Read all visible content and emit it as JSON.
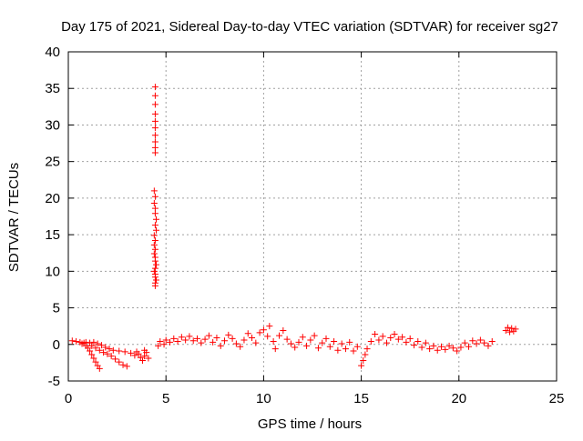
{
  "chart_data": {
    "type": "scatter",
    "title": "Day 175 of 2021, Sidereal Day-to-day VTEC variation (SDTVAR) for receiver sg27",
    "xlabel": "GPS time / hours",
    "ylabel": "SDTVAR / TECUs",
    "xlim": [
      0,
      25
    ],
    "ylim": [
      -5,
      40
    ],
    "xticks": [
      "0",
      "5",
      "10",
      "15",
      "20",
      "25"
    ],
    "yticks": [
      "-5",
      "0",
      "5",
      "10",
      "15",
      "20",
      "25",
      "30",
      "35",
      "40"
    ],
    "grid": true,
    "marker": "+",
    "color": "#ff0000",
    "series": [
      {
        "name": "sg27",
        "points": [
          [
            0.2,
            0.5
          ],
          [
            0.4,
            0.4
          ],
          [
            0.6,
            0.3
          ],
          [
            0.8,
            0.2
          ],
          [
            0.7,
            0.1
          ],
          [
            0.9,
            -0.2
          ],
          [
            1.0,
            -0.5
          ],
          [
            1.1,
            -0.9
          ],
          [
            1.2,
            -1.4
          ],
          [
            1.3,
            -1.9
          ],
          [
            1.4,
            -2.4
          ],
          [
            1.5,
            -2.9
          ],
          [
            1.6,
            -3.3
          ],
          [
            0.9,
            0.3
          ],
          [
            1.1,
            0.2
          ],
          [
            1.3,
            0.3
          ],
          [
            1.5,
            0.1
          ],
          [
            1.2,
            -0.2
          ],
          [
            1.4,
            -0.5
          ],
          [
            1.6,
            -0.8
          ],
          [
            1.8,
            -1.1
          ],
          [
            2.0,
            -1.3
          ],
          [
            2.2,
            -1.6
          ],
          [
            2.4,
            -2.0
          ],
          [
            2.6,
            -2.4
          ],
          [
            2.8,
            -2.8
          ],
          [
            3.0,
            -3.0
          ],
          [
            1.7,
            -0.1
          ],
          [
            1.9,
            -0.4
          ],
          [
            2.1,
            -0.6
          ],
          [
            2.3,
            -0.8
          ],
          [
            2.6,
            -0.9
          ],
          [
            2.9,
            -1.0
          ],
          [
            3.2,
            -1.2
          ],
          [
            3.4,
            -1.5
          ],
          [
            3.5,
            -1.0
          ],
          [
            3.6,
            -1.3
          ],
          [
            3.7,
            -1.8
          ],
          [
            3.8,
            -2.2
          ],
          [
            3.9,
            -1.6
          ],
          [
            4.0,
            -1.1
          ],
          [
            4.1,
            -1.9
          ],
          [
            3.9,
            -0.8
          ],
          [
            4.45,
            35.2
          ],
          [
            4.45,
            34.0
          ],
          [
            4.45,
            32.8
          ],
          [
            4.45,
            31.5
          ],
          [
            4.45,
            30.5
          ],
          [
            4.45,
            29.6
          ],
          [
            4.45,
            28.6
          ],
          [
            4.45,
            27.7
          ],
          [
            4.45,
            26.9
          ],
          [
            4.45,
            26.2
          ],
          [
            4.4,
            21.0
          ],
          [
            4.45,
            20.2
          ],
          [
            4.4,
            19.3
          ],
          [
            4.45,
            18.6
          ],
          [
            4.45,
            17.9
          ],
          [
            4.5,
            17.1
          ],
          [
            4.45,
            16.3
          ],
          [
            4.5,
            15.6
          ],
          [
            4.4,
            14.9
          ],
          [
            4.45,
            14.2
          ],
          [
            4.4,
            13.6
          ],
          [
            4.45,
            13.0
          ],
          [
            4.4,
            12.4
          ],
          [
            4.45,
            11.9
          ],
          [
            4.45,
            11.4
          ],
          [
            4.5,
            10.9
          ],
          [
            4.45,
            10.4
          ],
          [
            4.4,
            10.0
          ],
          [
            4.45,
            9.6
          ],
          [
            4.45,
            9.2
          ],
          [
            4.5,
            8.8
          ],
          [
            4.45,
            8.4
          ],
          [
            4.45,
            8.0
          ],
          [
            4.6,
            -0.2
          ],
          [
            4.7,
            0.4
          ],
          [
            4.9,
            0.0
          ],
          [
            5.0,
            0.6
          ],
          [
            5.2,
            0.3
          ],
          [
            5.4,
            0.8
          ],
          [
            5.6,
            0.4
          ],
          [
            5.8,
            1.0
          ],
          [
            6.0,
            0.6
          ],
          [
            6.2,
            1.1
          ],
          [
            6.4,
            0.5
          ],
          [
            6.6,
            0.8
          ],
          [
            6.8,
            0.2
          ],
          [
            7.0,
            0.7
          ],
          [
            7.2,
            1.2
          ],
          [
            7.4,
            0.3
          ],
          [
            7.6,
            0.9
          ],
          [
            7.8,
            -0.2
          ],
          [
            8.0,
            0.5
          ],
          [
            8.2,
            1.3
          ],
          [
            8.4,
            0.8
          ],
          [
            8.6,
            0.1
          ],
          [
            8.8,
            -0.3
          ],
          [
            9.0,
            0.6
          ],
          [
            9.2,
            1.5
          ],
          [
            9.4,
            0.9
          ],
          [
            9.6,
            0.2
          ],
          [
            9.8,
            1.6
          ],
          [
            10.0,
            2.0
          ],
          [
            10.2,
            1.1
          ],
          [
            10.3,
            2.5
          ],
          [
            10.5,
            0.4
          ],
          [
            10.6,
            -0.6
          ],
          [
            10.8,
            1.2
          ],
          [
            11.0,
            1.9
          ],
          [
            11.2,
            0.7
          ],
          [
            11.4,
            0.1
          ],
          [
            11.6,
            -0.4
          ],
          [
            11.8,
            0.3
          ],
          [
            12.0,
            1.0
          ],
          [
            12.2,
            -0.2
          ],
          [
            12.4,
            0.6
          ],
          [
            12.6,
            1.2
          ],
          [
            12.8,
            -0.5
          ],
          [
            13.0,
            0.2
          ],
          [
            13.2,
            0.8
          ],
          [
            13.4,
            -0.3
          ],
          [
            13.6,
            0.4
          ],
          [
            13.8,
            -0.8
          ],
          [
            14.0,
            0.1
          ],
          [
            14.2,
            -0.6
          ],
          [
            14.4,
            0.3
          ],
          [
            14.6,
            -0.9
          ],
          [
            14.8,
            -0.3
          ],
          [
            15.0,
            -2.9
          ],
          [
            15.1,
            -2.2
          ],
          [
            15.2,
            -1.4
          ],
          [
            15.3,
            -0.6
          ],
          [
            15.5,
            0.4
          ],
          [
            15.7,
            1.4
          ],
          [
            15.9,
            0.6
          ],
          [
            16.1,
            1.1
          ],
          [
            16.3,
            0.2
          ],
          [
            16.5,
            0.9
          ],
          [
            16.7,
            1.4
          ],
          [
            16.9,
            0.7
          ],
          [
            17.1,
            1.0
          ],
          [
            17.3,
            0.3
          ],
          [
            17.5,
            0.8
          ],
          [
            17.7,
            -0.1
          ],
          [
            17.9,
            0.4
          ],
          [
            18.1,
            -0.4
          ],
          [
            18.3,
            0.2
          ],
          [
            18.5,
            -0.6
          ],
          [
            18.7,
            -0.2
          ],
          [
            18.9,
            -0.8
          ],
          [
            19.1,
            -0.3
          ],
          [
            19.3,
            -0.7
          ],
          [
            19.5,
            -0.2
          ],
          [
            19.7,
            -0.5
          ],
          [
            19.9,
            -0.9
          ],
          [
            20.1,
            -0.4
          ],
          [
            20.3,
            0.2
          ],
          [
            20.5,
            -0.3
          ],
          [
            20.7,
            0.5
          ],
          [
            20.9,
            0.1
          ],
          [
            21.1,
            0.6
          ],
          [
            21.3,
            0.2
          ],
          [
            21.5,
            -0.2
          ],
          [
            21.7,
            0.4
          ],
          [
            22.4,
            1.9
          ],
          [
            22.5,
            2.3
          ],
          [
            22.6,
            1.7
          ],
          [
            22.7,
            2.2
          ],
          [
            22.8,
            1.8
          ],
          [
            22.9,
            2.1
          ]
        ]
      }
    ]
  }
}
